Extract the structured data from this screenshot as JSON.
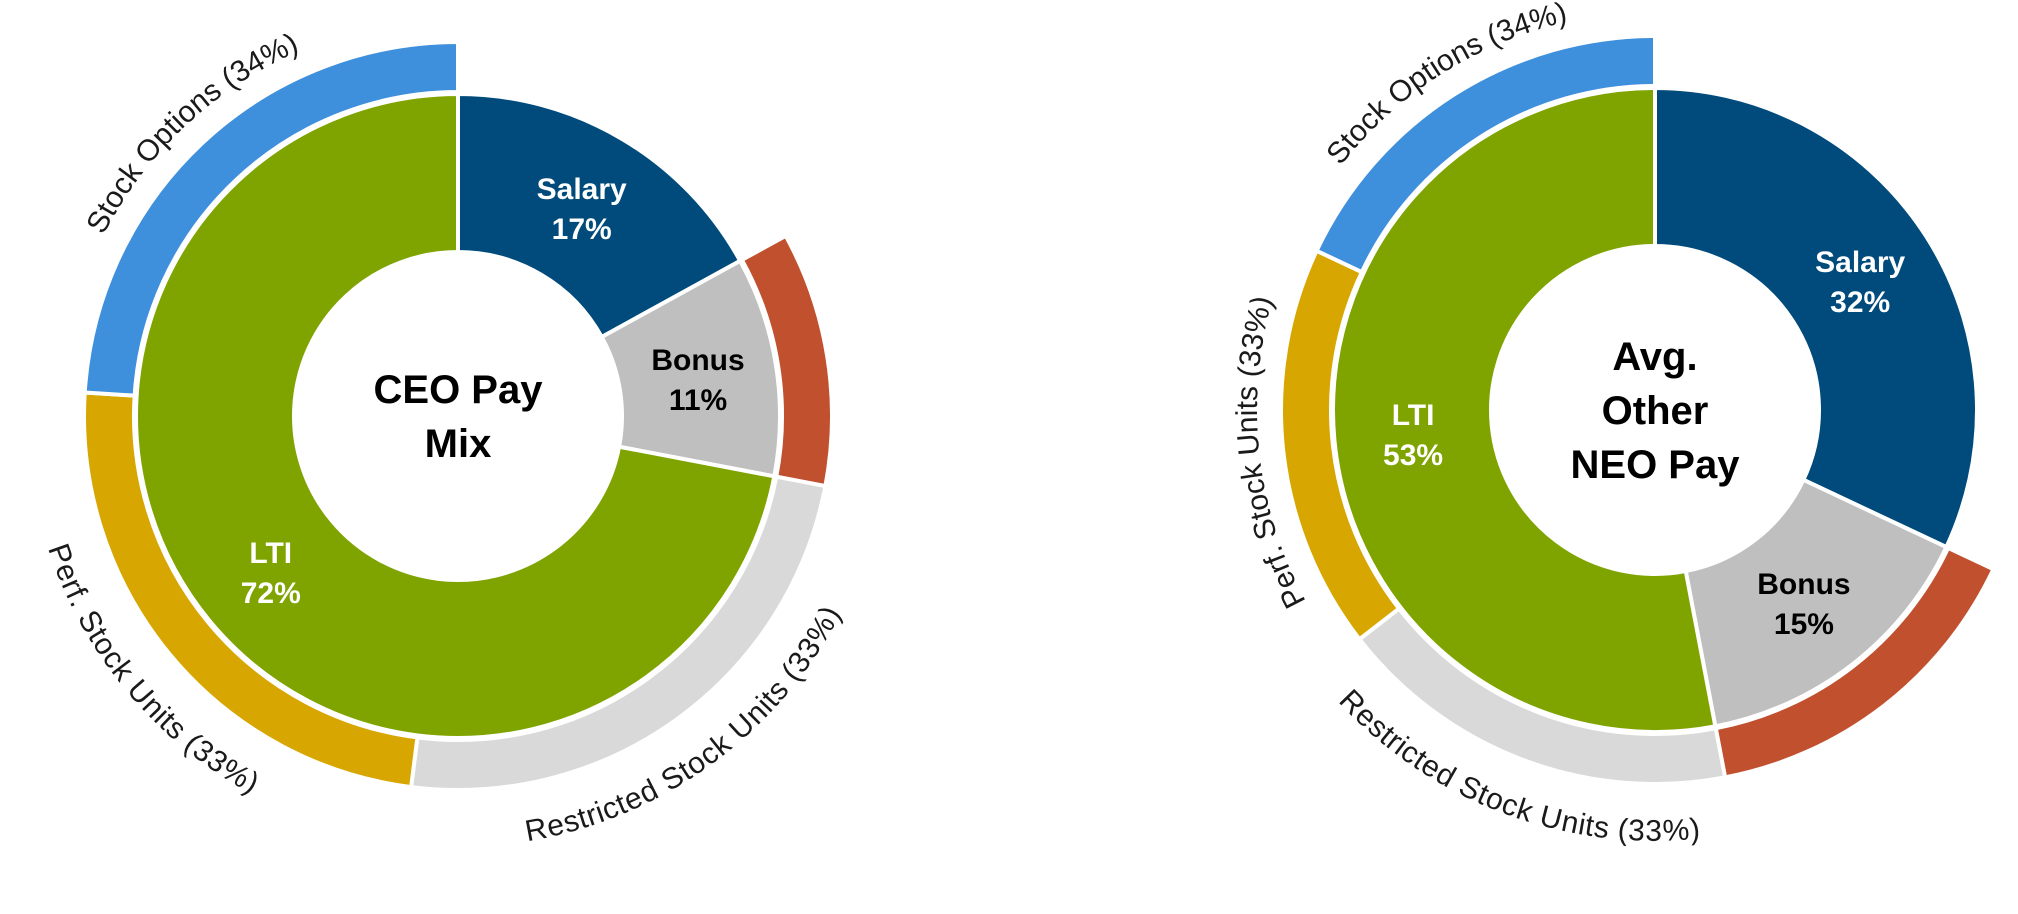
{
  "chart_data": [
    {
      "type": "pie",
      "center_label_lines": [
        "CEO Pay",
        "Mix"
      ],
      "inner_ring": [
        {
          "name": "Salary",
          "value": 17,
          "label": "17%",
          "color": "#004b7c",
          "text_color": "#ffffff"
        },
        {
          "name": "Bonus",
          "value": 11,
          "label": "11%",
          "color": "#bfbfbf",
          "text_color": "#000000"
        },
        {
          "name": "LTI",
          "value": 72,
          "label": "72%",
          "color": "#7fa400",
          "text_color": "#ffffff"
        }
      ],
      "outer_ring": [
        {
          "name": "Salary",
          "value": 17,
          "color": null
        },
        {
          "name": "Bonus",
          "value": 11,
          "color": "#c0502e"
        },
        {
          "name": "Restricted Stock Units",
          "value": 24,
          "label": "Restricted Stock Units (33%)",
          "color": "#d9d9d9"
        },
        {
          "name": "Perf. Stock Units",
          "value": 24,
          "label": "Perf. Stock Units (33%)",
          "color": "#d8a600"
        },
        {
          "name": "Stock Options",
          "value": 24,
          "label": "Stock Options (34%)",
          "color": "#3e8fdc"
        }
      ]
    },
    {
      "type": "pie",
      "center_label_lines": [
        "Avg.",
        "Other",
        "NEO Pay"
      ],
      "inner_ring": [
        {
          "name": "Salary",
          "value": 32,
          "label": "32%",
          "color": "#004b7c",
          "text_color": "#ffffff"
        },
        {
          "name": "Bonus",
          "value": 15,
          "label": "15%",
          "color": "#bfbfbf",
          "text_color": "#000000"
        },
        {
          "name": "LTI",
          "value": 53,
          "label": "53%",
          "color": "#7fa400",
          "text_color": "#ffffff"
        }
      ],
      "outer_ring": [
        {
          "name": "Salary",
          "value": 32,
          "color": null
        },
        {
          "name": "Bonus",
          "value": 15,
          "color": "#c0502e"
        },
        {
          "name": "Restricted Stock Units",
          "value": 17.5,
          "label": "Restricted Stock Units (33%)",
          "color": "#d9d9d9"
        },
        {
          "name": "Perf. Stock Units",
          "value": 17.5,
          "label": "Perf. Stock Units (33%)",
          "color": "#d8a600"
        },
        {
          "name": "Stock Options",
          "value": 18,
          "label": "Stock Options (34%)",
          "color": "#3e8fdc"
        }
      ]
    }
  ]
}
